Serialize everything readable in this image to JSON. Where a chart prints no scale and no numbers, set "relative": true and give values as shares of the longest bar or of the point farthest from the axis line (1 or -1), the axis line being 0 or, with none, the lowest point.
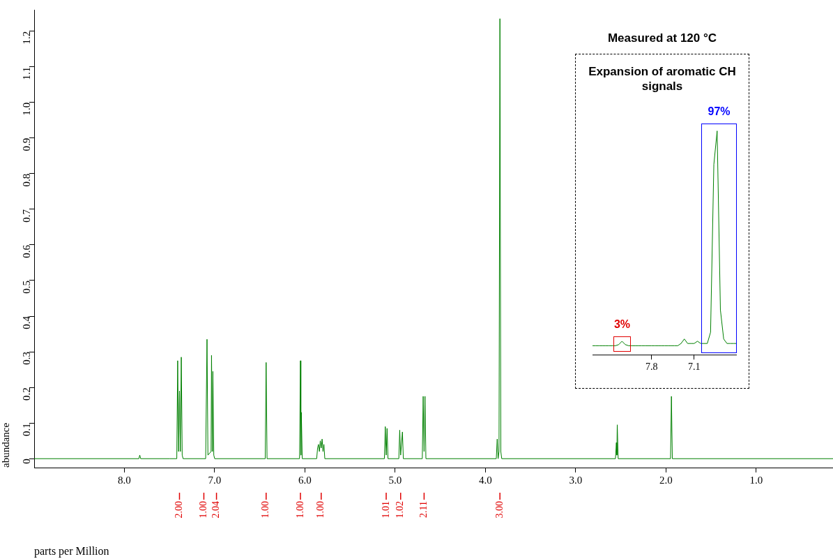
{
  "chart_data": [
    {
      "type": "line",
      "xlabel": "parts per Million",
      "ylabel": "abundance",
      "xlim": [
        9.0,
        0.15
      ],
      "ylim": [
        -0.025,
        1.26
      ],
      "xticks": [
        {
          "value": 8,
          "label": "8.0"
        },
        {
          "value": 7,
          "label": "7.0"
        },
        {
          "value": 6,
          "label": "6.0"
        },
        {
          "value": 5,
          "label": "5.0"
        },
        {
          "value": 4,
          "label": "4.0"
        },
        {
          "value": 3,
          "label": "3.0"
        },
        {
          "value": 2,
          "label": "2.0"
        },
        {
          "value": 1,
          "label": "1.0"
        }
      ],
      "yticks": [
        0,
        0.1,
        0.2,
        0.3,
        0.4,
        0.5,
        0.6,
        0.7,
        0.8,
        0.9,
        {
          "value": 1,
          "label": "1.0"
        },
        1.1,
        1.2
      ],
      "grid": false,
      "legend": false,
      "marker": "none",
      "series": [
        {
          "color": "#008000",
          "x": [
            9.0,
            7.84,
            7.83,
            7.82,
            7.5,
            7.42,
            7.41,
            7.4,
            7.39,
            7.38,
            7.37,
            7.36,
            7.35,
            7.1,
            7.085,
            7.075,
            7.04,
            7.035,
            7.025,
            7.02,
            7.01,
            7.0,
            6.44,
            6.43,
            6.42,
            6.06,
            6.05,
            6.045,
            6.04,
            6.03,
            5.87,
            5.86,
            5.85,
            5.84,
            5.83,
            5.82,
            5.81,
            5.8,
            5.79,
            5.78,
            5.12,
            5.11,
            5.1,
            5.09,
            5.08,
            4.96,
            4.95,
            4.94,
            4.92,
            4.91,
            4.7,
            4.69,
            4.68,
            4.67,
            4.66,
            3.88,
            3.87,
            3.86,
            3.85,
            3.84,
            3.83,
            3.82,
            2.56,
            2.55,
            2.545,
            2.54,
            2.53,
            1.95,
            1.94,
            1.93,
            0.15
          ],
          "values": [
            0,
            0,
            0.01,
            0,
            0,
            0,
            0.275,
            0.02,
            0.19,
            0.02,
            0.285,
            0.01,
            0,
            0,
            0.335,
            0.01,
            0.02,
            0.29,
            0.02,
            0.245,
            0.01,
            0,
            0,
            0.27,
            0,
            0,
            0.275,
            0.01,
            0.13,
            0,
            0,
            0.03,
            0.04,
            0.02,
            0.05,
            0.03,
            0.055,
            0.02,
            0.04,
            0,
            0,
            0.09,
            0.01,
            0.085,
            0,
            0,
            0.08,
            0.01,
            0.075,
            0,
            0,
            0.175,
            0.02,
            0.175,
            0,
            0,
            0.055,
            0,
            0.02,
            1.235,
            0.02,
            0,
            0,
            0.045,
            0.01,
            0.095,
            0,
            0,
            0.175,
            0,
            0
          ]
        }
      ],
      "annotations": [
        {
          "text": "2.00",
          "x": 7.39
        },
        {
          "text": "1.00",
          "x": 7.12
        },
        {
          "text": "2.04",
          "x": 6.98
        },
        {
          "text": "1.00",
          "x": 6.43
        },
        {
          "text": "1.00",
          "x": 6.05
        },
        {
          "text": "1.00",
          "x": 5.82
        },
        {
          "text": "1.01",
          "x": 5.1
        },
        {
          "text": "1.02",
          "x": 4.94
        },
        {
          "text": "2.11",
          "x": 4.68
        },
        {
          "text": "3.00",
          "x": 3.84
        }
      ]
    },
    {
      "type": "line",
      "subtitle": "Measured at 120 °C",
      "title": "Expansion of aromatic CH signals",
      "annotations": [
        "3%",
        "97%"
      ],
      "relative": true,
      "marker": "none",
      "legend": false,
      "categories": [
        null,
        null,
        null,
        null,
        null,
        null,
        null,
        null,
        null,
        null,
        null,
        null,
        null,
        null,
        null,
        null,
        null,
        null,
        "7.8",
        null,
        null,
        null,
        null,
        null,
        null,
        null,
        null,
        null,
        null,
        null,
        null,
        "7.1",
        null,
        null,
        null,
        null,
        null,
        null,
        null,
        null,
        null,
        null,
        null,
        null,
        null
      ],
      "series": [
        {
          "color": "#008000",
          "values": [
            0.04,
            0.04,
            0.04,
            0.04,
            0.04,
            0.04,
            0.04,
            0.04,
            0.045,
            0.06,
            0.045,
            0.04,
            0.04,
            0.04,
            0.04,
            0.04,
            0.04,
            0.04,
            0.04,
            0.04,
            0.04,
            0.04,
            0.04,
            0.04,
            0.04,
            0.04,
            0.04,
            0.05,
            0.07,
            0.05,
            0.05,
            0.05,
            0.06,
            0.05,
            0.05,
            0.05,
            0.1,
            0.85,
            1.0,
            0.2,
            0.07,
            0.05,
            0.05,
            0.05,
            0.05
          ]
        }
      ]
    }
  ]
}
